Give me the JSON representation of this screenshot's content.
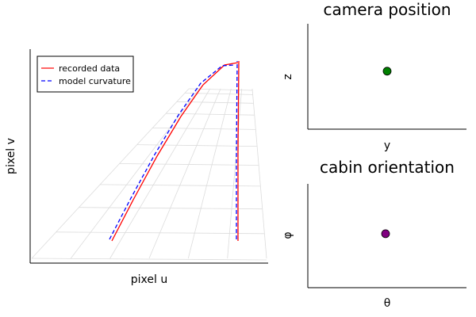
{
  "chart_data": [
    {
      "type": "line",
      "id": "lane-view",
      "title": "",
      "xlabel": "pixel u",
      "ylabel": "pixel v",
      "grid": "perspective ground grid",
      "legend": {
        "placement": "top-left",
        "entries": [
          {
            "label": "recorded data",
            "color": "#ff0000",
            "style": "solid"
          },
          {
            "label": "model curvature",
            "color": "#0000ff",
            "style": "dashed"
          }
        ]
      },
      "xlim": [
        0,
        300
      ],
      "ylim": [
        0,
        270
      ],
      "series": [
        {
          "name": "recorded data",
          "color": "#ff0000",
          "lines": [
            {
              "x": [
                103,
                130,
                160,
                190,
                218,
                245,
                262
              ],
              "y": [
                28,
                80,
                135,
                185,
                225,
                250,
                253
              ]
            },
            {
              "x": [
                262,
                262,
                263
              ],
              "y": [
                28,
                140,
                255
              ]
            }
          ]
        },
        {
          "name": "model curvature",
          "color": "#0000ff",
          "lines": [
            {
              "x": [
                100,
                127,
                157,
                187,
                215,
                242,
                258
              ],
              "y": [
                30,
                82,
                137,
                187,
                227,
                249,
                250
              ]
            },
            {
              "x": [
                260,
                260,
                261
              ],
              "y": [
                30,
                140,
                255
              ]
            }
          ]
        }
      ]
    },
    {
      "type": "scatter",
      "id": "camera-position",
      "title": "camera position",
      "xlabel": "y",
      "ylabel": "z",
      "xlim": [
        0,
        1
      ],
      "ylim": [
        0,
        1
      ],
      "grid": false,
      "points": [
        {
          "x": 0.5,
          "y": 0.55,
          "color": "#008000"
        }
      ]
    },
    {
      "type": "scatter",
      "id": "cabin-orientation",
      "title": "cabin orientation",
      "xlabel": "θ",
      "ylabel": "φ",
      "xlim": [
        0,
        1
      ],
      "ylim": [
        0,
        1
      ],
      "grid": false,
      "points": [
        {
          "x": 0.5,
          "y": 0.52,
          "color": "#800080"
        }
      ]
    }
  ]
}
